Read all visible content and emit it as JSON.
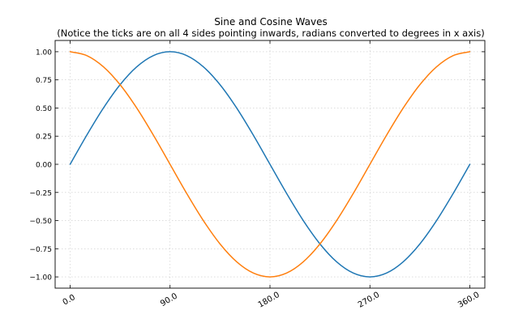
{
  "chart_data": {
    "type": "line",
    "title": "Sine and Cosine Waves",
    "subtitle": "(Notice the ticks are on all 4 sides pointing inwards, radians converted to degrees in x axis)",
    "xlabel": "",
    "ylabel": "",
    "xlim": [
      -13.5,
      373.5
    ],
    "ylim": [
      -1.1,
      1.1
    ],
    "x_ticks": [
      0,
      90,
      180,
      270,
      360
    ],
    "x_tick_labels": [
      "0.0",
      "90.0",
      "180.0",
      "270.0",
      "360.0"
    ],
    "x_tick_rotation_deg": -30,
    "y_ticks": [
      1.0,
      0.75,
      0.5,
      0.25,
      0.0,
      -0.25,
      -0.5,
      -0.75,
      -1.0
    ],
    "y_tick_labels": [
      "1.00",
      "0.75",
      "0.50",
      "0.25",
      "0.00",
      "−0.25",
      "−0.50",
      "−0.75",
      "−1.00"
    ],
    "grid": true,
    "ticks_direction": "in",
    "ticks_on_all_sides": true,
    "legend": null,
    "x": [
      0,
      15,
      30,
      45,
      60,
      75,
      90,
      105,
      120,
      135,
      150,
      165,
      180,
      195,
      210,
      225,
      240,
      255,
      270,
      285,
      300,
      315,
      330,
      345,
      360
    ],
    "series": [
      {
        "color": "#1f77b4",
        "values": [
          0,
          0.2588,
          0.5,
          0.7071,
          0.866,
          0.9659,
          1,
          0.9659,
          0.866,
          0.7071,
          0.5,
          0.2588,
          0,
          -0.2588,
          -0.5,
          -0.7071,
          -0.866,
          -0.9659,
          -1,
          -0.9659,
          -0.866,
          -0.7071,
          -0.5,
          -0.2588,
          0
        ]
      },
      {
        "color": "#ff7f0e",
        "values": [
          1,
          0.9659,
          0.866,
          0.7071,
          0.5,
          0.2588,
          0,
          -0.2588,
          -0.5,
          -0.7071,
          -0.866,
          -0.9659,
          -1,
          -0.9659,
          -0.866,
          -0.7071,
          -0.5,
          -0.2588,
          0,
          0.2588,
          0.5,
          0.7071,
          0.866,
          0.9659,
          1
        ]
      }
    ]
  }
}
